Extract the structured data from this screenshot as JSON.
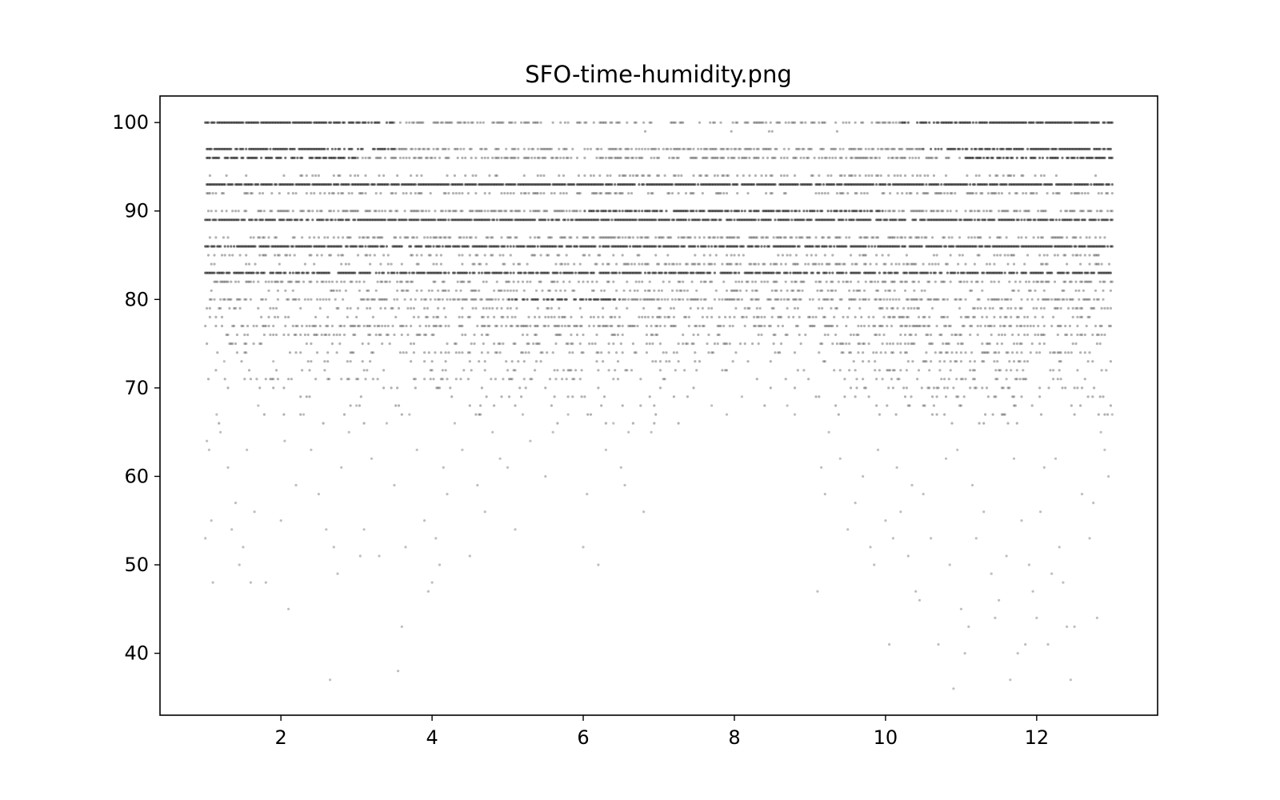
{
  "chart_data": {
    "type": "scatter",
    "title": "SFO-time-humidity.png",
    "xlabel": "",
    "ylabel": "",
    "xlim": [
      0.4,
      13.6
    ],
    "ylim": [
      33,
      103
    ],
    "x_ticks": [
      2,
      4,
      6,
      8,
      10,
      12
    ],
    "x_tick_labels": [
      "2",
      "4",
      "6",
      "8",
      "10",
      "12"
    ],
    "y_ticks": [
      40,
      50,
      60,
      70,
      80,
      90,
      100
    ],
    "y_tick_labels": [
      "40",
      "50",
      "60",
      "70",
      "80",
      "90",
      "100"
    ],
    "grid": false,
    "legend": "none",
    "marker_color": "#000000",
    "marker_alpha": 0.25,
    "x_range": [
      1.0,
      13.0
    ],
    "points": [
      [
        1.0,
        53
      ],
      [
        1.02,
        64
      ],
      [
        1.05,
        63
      ],
      [
        1.08,
        55
      ],
      [
        1.1,
        48
      ],
      [
        1.15,
        67
      ],
      [
        1.2,
        65
      ],
      [
        1.25,
        73
      ],
      [
        1.3,
        61
      ],
      [
        1.35,
        54
      ],
      [
        1.4,
        57
      ],
      [
        1.45,
        50
      ],
      [
        1.5,
        52
      ],
      [
        1.55,
        63
      ],
      [
        1.6,
        48
      ],
      [
        1.65,
        56
      ],
      [
        1.7,
        68
      ],
      [
        1.8,
        48
      ],
      [
        1.9,
        73
      ],
      [
        2.0,
        55
      ],
      [
        2.05,
        64
      ],
      [
        2.1,
        45
      ],
      [
        2.2,
        59
      ],
      [
        2.3,
        67
      ],
      [
        2.4,
        63
      ],
      [
        2.5,
        58
      ],
      [
        2.6,
        54
      ],
      [
        2.65,
        37
      ],
      [
        2.7,
        52
      ],
      [
        2.75,
        49
      ],
      [
        2.8,
        61
      ],
      [
        2.9,
        65
      ],
      [
        3.0,
        68
      ],
      [
        3.05,
        51
      ],
      [
        3.1,
        54
      ],
      [
        3.2,
        62
      ],
      [
        3.3,
        51
      ],
      [
        3.4,
        66
      ],
      [
        3.5,
        59
      ],
      [
        3.55,
        38
      ],
      [
        3.6,
        43
      ],
      [
        3.65,
        52
      ],
      [
        3.7,
        67
      ],
      [
        3.8,
        63
      ],
      [
        3.9,
        55
      ],
      [
        3.95,
        47
      ],
      [
        4.0,
        48
      ],
      [
        4.05,
        53
      ],
      [
        4.1,
        50
      ],
      [
        4.15,
        61
      ],
      [
        4.2,
        58
      ],
      [
        4.3,
        66
      ],
      [
        4.4,
        63
      ],
      [
        4.5,
        51
      ],
      [
        4.6,
        59
      ],
      [
        4.7,
        56
      ],
      [
        4.8,
        65
      ],
      [
        4.9,
        62
      ],
      [
        5.0,
        61
      ],
      [
        5.1,
        54
      ],
      [
        5.2,
        67
      ],
      [
        5.3,
        64
      ],
      [
        5.5,
        60
      ],
      [
        5.6,
        65
      ],
      [
        5.8,
        67
      ],
      [
        6.0,
        52
      ],
      [
        6.05,
        58
      ],
      [
        6.2,
        50
      ],
      [
        6.3,
        63
      ],
      [
        6.4,
        66
      ],
      [
        6.5,
        61
      ],
      [
        6.55,
        59
      ],
      [
        6.6,
        65
      ],
      [
        6.8,
        56
      ],
      [
        6.9,
        65
      ],
      [
        7.7,
        68
      ],
      [
        7.9,
        67
      ],
      [
        8.1,
        69
      ],
      [
        8.7,
        68
      ],
      [
        8.8,
        67
      ],
      [
        9.1,
        47
      ],
      [
        9.15,
        61
      ],
      [
        9.2,
        58
      ],
      [
        9.25,
        65
      ],
      [
        9.4,
        62
      ],
      [
        9.5,
        54
      ],
      [
        9.6,
        57
      ],
      [
        9.7,
        60
      ],
      [
        9.8,
        52
      ],
      [
        9.85,
        50
      ],
      [
        9.9,
        63
      ],
      [
        10.0,
        55
      ],
      [
        10.05,
        41
      ],
      [
        10.1,
        53
      ],
      [
        10.15,
        61
      ],
      [
        10.2,
        56
      ],
      [
        10.3,
        51
      ],
      [
        10.35,
        59
      ],
      [
        10.4,
        47
      ],
      [
        10.45,
        46
      ],
      [
        10.5,
        58
      ],
      [
        10.6,
        53
      ],
      [
        10.7,
        41
      ],
      [
        10.8,
        62
      ],
      [
        10.85,
        50
      ],
      [
        10.9,
        36
      ],
      [
        10.95,
        63
      ],
      [
        11.0,
        45
      ],
      [
        11.05,
        40
      ],
      [
        11.1,
        43
      ],
      [
        11.15,
        59
      ],
      [
        11.2,
        53
      ],
      [
        11.3,
        56
      ],
      [
        11.4,
        49
      ],
      [
        11.45,
        44
      ],
      [
        11.5,
        46
      ],
      [
        11.6,
        51
      ],
      [
        11.65,
        37
      ],
      [
        11.7,
        62
      ],
      [
        11.75,
        40
      ],
      [
        11.8,
        55
      ],
      [
        11.85,
        41
      ],
      [
        11.9,
        50
      ],
      [
        11.95,
        47
      ],
      [
        12.0,
        44
      ],
      [
        12.05,
        56
      ],
      [
        12.1,
        61
      ],
      [
        12.15,
        41
      ],
      [
        12.2,
        49
      ],
      [
        12.25,
        62
      ],
      [
        12.3,
        52
      ],
      [
        12.35,
        48
      ],
      [
        12.4,
        43
      ],
      [
        12.45,
        37
      ],
      [
        12.5,
        43
      ],
      [
        12.6,
        58
      ],
      [
        12.7,
        53
      ],
      [
        12.75,
        57
      ],
      [
        12.8,
        44
      ],
      [
        12.85,
        65
      ],
      [
        12.9,
        63
      ],
      [
        12.95,
        60
      ],
      [
        13.0,
        67
      ]
    ],
    "row_profiles": [
      {
        "y": 100,
        "density": [
          0.85,
          0.95,
          0.7,
          0.5,
          0.5,
          0.4,
          0.35,
          0.35,
          0.35,
          0.55,
          0.8,
          0.9,
          0.95
        ]
      },
      {
        "y": 99,
        "density": [
          0.01,
          0.02,
          0.0,
          0.0,
          0.0,
          0.0,
          0.02,
          0.05,
          0.05,
          0.0,
          0.0,
          0.0,
          0.0
        ]
      },
      {
        "y": 97,
        "density": [
          0.85,
          0.8,
          0.65,
          0.55,
          0.5,
          0.5,
          0.5,
          0.6,
          0.5,
          0.55,
          0.65,
          0.8,
          0.9
        ]
      },
      {
        "y": 96,
        "density": [
          0.7,
          0.7,
          0.6,
          0.5,
          0.5,
          0.5,
          0.55,
          0.6,
          0.55,
          0.5,
          0.6,
          0.7,
          0.8
        ]
      },
      {
        "y": 94,
        "density": [
          0.15,
          0.2,
          0.2,
          0.2,
          0.25,
          0.3,
          0.4,
          0.45,
          0.35,
          0.3,
          0.25,
          0.2,
          0.15
        ]
      },
      {
        "y": 93,
        "density": [
          0.9,
          0.9,
          0.9,
          0.9,
          0.9,
          0.9,
          0.9,
          0.9,
          0.9,
          0.9,
          0.9,
          0.9,
          0.9
        ]
      },
      {
        "y": 92,
        "density": [
          0.45,
          0.35,
          0.3,
          0.3,
          0.3,
          0.3,
          0.25,
          0.25,
          0.25,
          0.3,
          0.35,
          0.4,
          0.5
        ]
      },
      {
        "y": 90,
        "density": [
          0.35,
          0.4,
          0.45,
          0.5,
          0.55,
          0.6,
          0.7,
          0.8,
          0.7,
          0.6,
          0.5,
          0.45,
          0.4
        ]
      },
      {
        "y": 89,
        "density": [
          0.8,
          0.8,
          0.8,
          0.8,
          0.8,
          0.8,
          0.8,
          0.8,
          0.8,
          0.8,
          0.8,
          0.8,
          0.8
        ]
      },
      {
        "y": 87,
        "density": [
          0.2,
          0.25,
          0.3,
          0.35,
          0.45,
          0.5,
          0.55,
          0.6,
          0.55,
          0.45,
          0.3,
          0.25,
          0.2
        ]
      },
      {
        "y": 86,
        "density": [
          0.85,
          0.8,
          0.8,
          0.8,
          0.8,
          0.8,
          0.8,
          0.8,
          0.8,
          0.8,
          0.8,
          0.8,
          0.85
        ]
      },
      {
        "y": 85,
        "density": [
          0.25,
          0.25,
          0.2,
          0.2,
          0.2,
          0.2,
          0.2,
          0.2,
          0.2,
          0.2,
          0.2,
          0.25,
          0.3
        ]
      },
      {
        "y": 84,
        "density": [
          0.15,
          0.15,
          0.2,
          0.25,
          0.3,
          0.4,
          0.5,
          0.55,
          0.5,
          0.4,
          0.3,
          0.2,
          0.15
        ]
      },
      {
        "y": 83,
        "density": [
          0.7,
          0.7,
          0.7,
          0.7,
          0.75,
          0.75,
          0.75,
          0.75,
          0.75,
          0.7,
          0.7,
          0.7,
          0.7
        ]
      },
      {
        "y": 82,
        "density": [
          0.45,
          0.4,
          0.35,
          0.3,
          0.3,
          0.25,
          0.25,
          0.25,
          0.3,
          0.35,
          0.4,
          0.45,
          0.5
        ]
      },
      {
        "y": 81,
        "density": [
          0.1,
          0.1,
          0.15,
          0.2,
          0.25,
          0.3,
          0.35,
          0.35,
          0.3,
          0.25,
          0.2,
          0.15,
          0.1
        ]
      },
      {
        "y": 80,
        "density": [
          0.4,
          0.4,
          0.45,
          0.5,
          0.6,
          0.65,
          0.55,
          0.45,
          0.4,
          0.45,
          0.5,
          0.45,
          0.4
        ]
      },
      {
        "y": 79,
        "density": [
          0.3,
          0.25,
          0.2,
          0.2,
          0.2,
          0.2,
          0.2,
          0.2,
          0.2,
          0.2,
          0.25,
          0.3,
          0.35
        ]
      },
      {
        "y": 78,
        "density": [
          0.1,
          0.15,
          0.15,
          0.2,
          0.3,
          0.35,
          0.35,
          0.3,
          0.3,
          0.35,
          0.3,
          0.2,
          0.15
        ]
      },
      {
        "y": 77,
        "density": [
          0.35,
          0.35,
          0.4,
          0.45,
          0.55,
          0.5,
          0.45,
          0.35,
          0.35,
          0.4,
          0.45,
          0.4,
          0.35
        ]
      },
      {
        "y": 76,
        "density": [
          0.3,
          0.25,
          0.2,
          0.2,
          0.15,
          0.15,
          0.15,
          0.15,
          0.2,
          0.25,
          0.3,
          0.35,
          0.35
        ]
      },
      {
        "y": 75,
        "density": [
          0.05,
          0.1,
          0.15,
          0.2,
          0.2,
          0.25,
          0.3,
          0.2,
          0.15,
          0.3,
          0.35,
          0.2,
          0.1
        ]
      },
      {
        "y": 74,
        "density": [
          0.05,
          0.1,
          0.15,
          0.2,
          0.25,
          0.25,
          0.2,
          0.15,
          0.1,
          0.25,
          0.3,
          0.2,
          0.1
        ]
      },
      {
        "y": 73,
        "density": [
          0.05,
          0.05,
          0.1,
          0.1,
          0.15,
          0.1,
          0.1,
          0.05,
          0.05,
          0.15,
          0.2,
          0.15,
          0.1
        ]
      },
      {
        "y": 72,
        "density": [
          0.05,
          0.1,
          0.1,
          0.15,
          0.2,
          0.2,
          0.15,
          0.05,
          0.05,
          0.2,
          0.3,
          0.2,
          0.1
        ]
      },
      {
        "y": 71,
        "density": [
          0.1,
          0.15,
          0.15,
          0.2,
          0.25,
          0.2,
          0.1,
          0.05,
          0.05,
          0.2,
          0.25,
          0.2,
          0.15
        ]
      },
      {
        "y": 70,
        "density": [
          0.05,
          0.05,
          0.05,
          0.1,
          0.1,
          0.05,
          0.05,
          0.0,
          0.05,
          0.15,
          0.2,
          0.15,
          0.1
        ]
      },
      {
        "y": 69,
        "density": [
          0.02,
          0.03,
          0.05,
          0.05,
          0.05,
          0.05,
          0.03,
          0.0,
          0.02,
          0.1,
          0.15,
          0.1,
          0.05
        ]
      },
      {
        "y": 68,
        "density": [
          0.02,
          0.03,
          0.05,
          0.05,
          0.05,
          0.05,
          0.03,
          0.0,
          0.02,
          0.1,
          0.1,
          0.1,
          0.05
        ]
      },
      {
        "y": 67,
        "density": [
          0.02,
          0.03,
          0.04,
          0.04,
          0.05,
          0.05,
          0.03,
          0.0,
          0.02,
          0.1,
          0.15,
          0.1,
          0.05
        ]
      },
      {
        "y": 66,
        "density": [
          0.02,
          0.02,
          0.03,
          0.03,
          0.03,
          0.02,
          0.02,
          0.0,
          0.01,
          0.05,
          0.08,
          0.06,
          0.04
        ]
      }
    ]
  }
}
